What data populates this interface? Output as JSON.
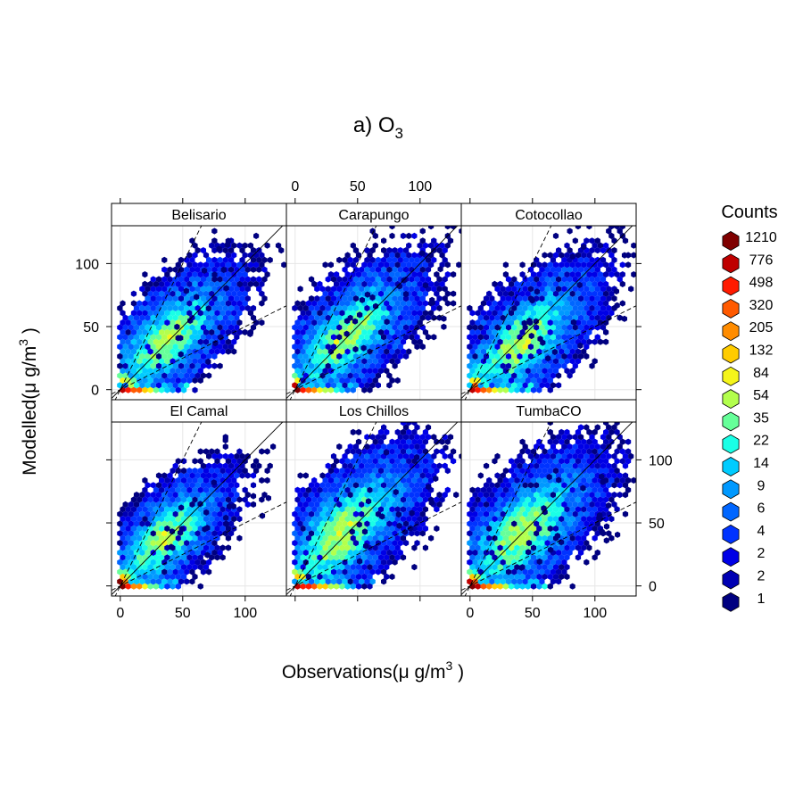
{
  "chart_data": {
    "type": "heatmap",
    "subtype": "hexbin-scatter-trellis",
    "title_main": "a) O",
    "title_sub": "3",
    "xlabel": {
      "text": "Observations(",
      "unit": "μ g",
      "denom": "m",
      "exp": "3",
      "close": ")"
    },
    "ylabel": {
      "text": "Modelled(",
      "unit": "μ g",
      "denom": "m",
      "exp": "3",
      "close": ")"
    },
    "xlim": [
      -7,
      133
    ],
    "ylim": [
      -8,
      130
    ],
    "xticks": [
      0,
      50,
      100
    ],
    "yticks": [
      0,
      50,
      100
    ],
    "xtick_labels": [
      "0",
      "50",
      "100"
    ],
    "ytick_labels": [
      "0",
      "50",
      "100"
    ],
    "grid": true,
    "reference_lines": [
      {
        "slope": 1,
        "style": "solid"
      },
      {
        "slope": 2,
        "style": "dashed"
      },
      {
        "slope": 0.5,
        "style": "dashed"
      }
    ],
    "panels": [
      {
        "name": "Belisario",
        "centroid": [
          38,
          40
        ],
        "spread": [
          19,
          17
        ],
        "zero_band_to": 42,
        "outlier_seed": 11
      },
      {
        "name": "Carapungo",
        "centroid": [
          42,
          43
        ],
        "spread": [
          19,
          18
        ],
        "zero_band_to": 40,
        "outlier_seed": 23
      },
      {
        "name": "Cotocollao",
        "centroid": [
          42,
          38
        ],
        "spread": [
          20,
          17
        ],
        "zero_band_to": 42,
        "outlier_seed": 37
      },
      {
        "name": "El Camal",
        "centroid": [
          36,
          38
        ],
        "spread": [
          17,
          16
        ],
        "zero_band_to": 36,
        "outlier_seed": 41
      },
      {
        "name": "Los Chillos",
        "centroid": [
          38,
          42
        ],
        "spread": [
          21,
          20
        ],
        "zero_band_to": 48,
        "outlier_seed": 53
      },
      {
        "name": "TumbaCO",
        "centroid": [
          42,
          42
        ],
        "spread": [
          21,
          19
        ],
        "zero_band_to": 46,
        "outlier_seed": 67
      }
    ],
    "legend": {
      "title": "Counts",
      "placement": "right",
      "levels": [
        {
          "label": "1210",
          "color": "#7f0000"
        },
        {
          "label": "776",
          "color": "#bf0000"
        },
        {
          "label": "498",
          "color": "#ff1a00"
        },
        {
          "label": "320",
          "color": "#ff5a00"
        },
        {
          "label": "205",
          "color": "#ff8c00"
        },
        {
          "label": "132",
          "color": "#ffcc00"
        },
        {
          "label": "84",
          "color": "#f5f51a"
        },
        {
          "label": "54",
          "color": "#b3ff4d"
        },
        {
          "label": "35",
          "color": "#66ff99"
        },
        {
          "label": "22",
          "color": "#1affe6"
        },
        {
          "label": "14",
          "color": "#00ccff"
        },
        {
          "label": "9",
          "color": "#0099ff"
        },
        {
          "label": "6",
          "color": "#0066ff"
        },
        {
          "label": "4",
          "color": "#0033ff"
        },
        {
          "label": "2",
          "color": "#0000e6"
        },
        {
          "label": "2",
          "color": "#0000b3"
        },
        {
          "label": "1",
          "color": "#000080"
        }
      ]
    }
  }
}
